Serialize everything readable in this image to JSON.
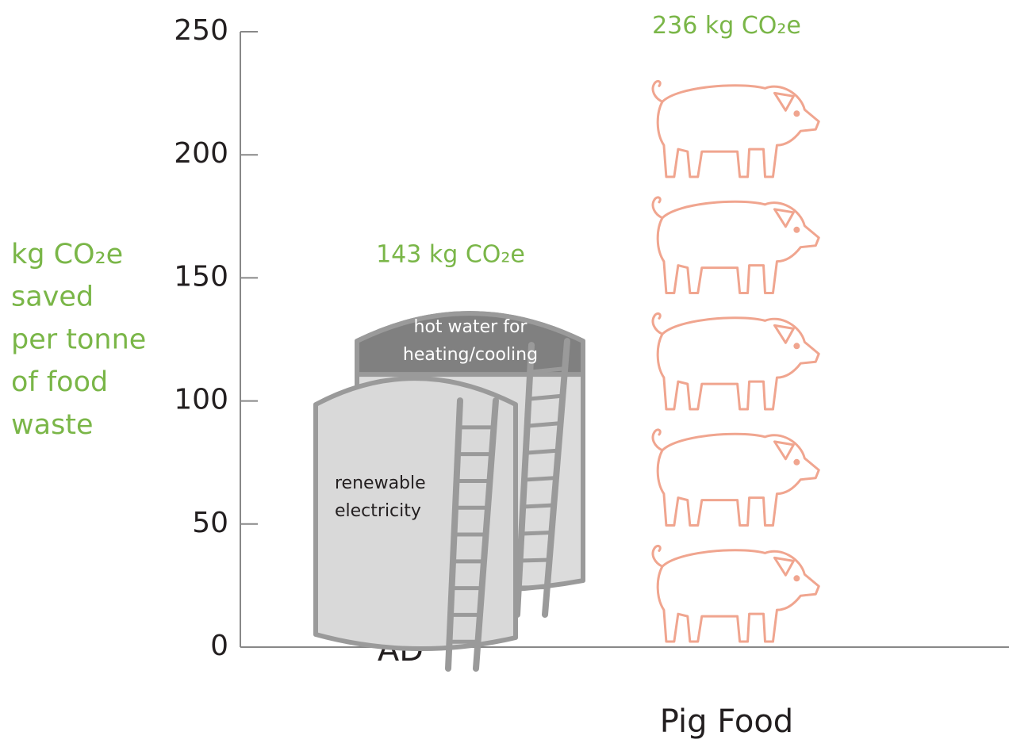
{
  "chart_data": {
    "type": "pictograph",
    "ylabel": [
      "kg CO₂e",
      "saved",
      "per tonne",
      "of food",
      "waste"
    ],
    "categories": [
      "AD",
      "Pig Food"
    ],
    "values": [
      143,
      236
    ],
    "value_labels": [
      "143 kg CO₂e",
      "236 kg CO₂e"
    ],
    "annotations": [
      [
        "hot water for",
        "heating/cooling"
      ],
      [
        "renewable",
        "electricity"
      ]
    ],
    "ylim": [
      0,
      250
    ],
    "yticks": [
      0,
      50,
      100,
      150,
      200,
      250
    ],
    "colors": {
      "label": "#7ab648",
      "pig": "#f0a58f",
      "tank": "#dcdcdc",
      "tank_outline": "#9a9a9a",
      "tank_cap": "#808080"
    }
  }
}
